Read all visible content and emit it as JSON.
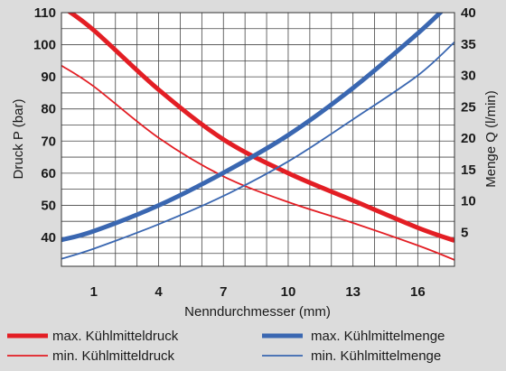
{
  "chart_data": {
    "type": "line",
    "xlabel": "Nenndurchmesser (mm)",
    "ylabel_left": "Druck P (bar)",
    "ylabel_right": "Menge Q (l/min)",
    "x_ticks": [
      1,
      4,
      7,
      10,
      13,
      16
    ],
    "xlim": [
      -0.5,
      17.7
    ],
    "y_left_ticks": [
      40,
      50,
      60,
      70,
      80,
      90,
      100,
      110
    ],
    "ylim_left": [
      31,
      110
    ],
    "y_right_ticks": [
      5,
      10,
      15,
      20,
      25,
      30,
      35,
      40
    ],
    "ylim_right": [
      -0.4,
      40
    ],
    "grid": true,
    "legend_position": "bottom",
    "series": [
      {
        "name": "max. Kühlmitteldruck",
        "axis": "left",
        "color": "#e31e24",
        "weight": "thick",
        "x": [
          -0.5,
          1,
          4,
          7,
          10,
          13,
          16,
          17.7
        ],
        "y": [
          112,
          104.5,
          86,
          70.5,
          60,
          51.5,
          43,
          39
        ]
      },
      {
        "name": "min. Kühlmitteldruck",
        "axis": "left",
        "color": "#e31e24",
        "weight": "thin",
        "x": [
          -0.5,
          1,
          4,
          7,
          10,
          13,
          16,
          17.7
        ],
        "y": [
          93.5,
          87,
          71,
          59,
          51,
          44.5,
          37.5,
          33
        ]
      },
      {
        "name": "max. Kühlmittelmenge",
        "axis": "right",
        "color": "#3a67b1",
        "weight": "thick",
        "x": [
          -0.5,
          1,
          4,
          7,
          10,
          13,
          16,
          17.7
        ],
        "y": [
          3.8,
          5.2,
          9.3,
          14.5,
          20.5,
          28.0,
          36.7,
          42.2
        ]
      },
      {
        "name": "min. Kühlmittelmenge",
        "axis": "right",
        "color": "#3a67b1",
        "weight": "thin",
        "x": [
          -0.5,
          1,
          4,
          7,
          10,
          13,
          16,
          17.7
        ],
        "y": [
          0.8,
          2.4,
          6.3,
          10.8,
          16.3,
          23.0,
          30.0,
          35.3
        ]
      }
    ]
  }
}
